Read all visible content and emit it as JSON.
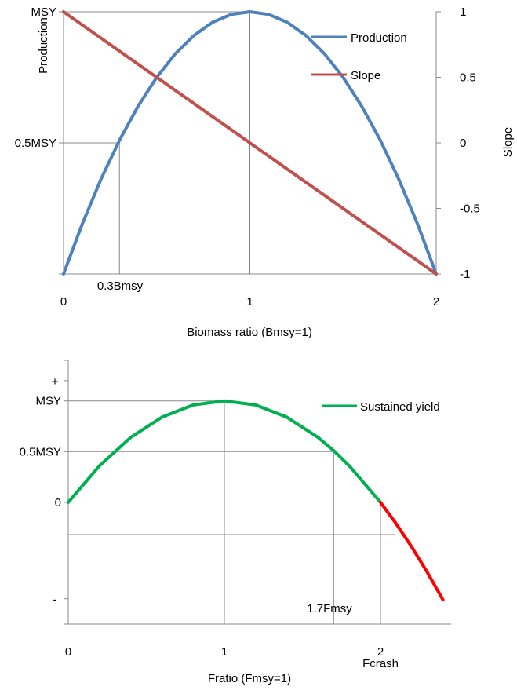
{
  "chart_data": [
    {
      "type": "line",
      "x": [
        0,
        0.1,
        0.2,
        0.3,
        0.4,
        0.5,
        0.6,
        0.7,
        0.8,
        0.9,
        1.0,
        1.1,
        1.2,
        1.3,
        1.4,
        1.5,
        1.6,
        1.7,
        1.8,
        1.9,
        2.0
      ],
      "series": [
        {
          "name": "Production",
          "axis": "left",
          "color": "#4f81bd",
          "values": [
            0,
            0.19,
            0.36,
            0.51,
            0.64,
            0.75,
            0.84,
            0.91,
            0.96,
            0.99,
            1.0,
            0.99,
            0.96,
            0.91,
            0.84,
            0.75,
            0.64,
            0.51,
            0.36,
            0.19,
            0
          ]
        },
        {
          "name": "Slope",
          "axis": "right",
          "color": "#c0504d",
          "values": [
            1.0,
            0.9,
            0.8,
            0.7,
            0.6,
            0.5,
            0.4,
            0.3,
            0.2,
            0.1,
            0,
            -0.1,
            -0.2,
            -0.3,
            -0.4,
            -0.5,
            -0.6,
            -0.7,
            -0.8,
            -0.9,
            -1.0
          ]
        }
      ],
      "xlabel": "Biomass ratio (Bmsy=1)",
      "ylabel": "Production",
      "y2label": "Slope",
      "xlim": [
        0,
        2
      ],
      "ylim": [
        0,
        1
      ],
      "y2lim": [
        -1,
        1
      ],
      "xticks": [
        {
          "value": 0,
          "label": "0"
        },
        {
          "value": 1,
          "label": "1"
        },
        {
          "value": 2,
          "label": "2"
        }
      ],
      "yticks": [
        {
          "value": 1,
          "label": "MSY"
        },
        {
          "value": 0.5,
          "label": "0.5MSY"
        }
      ],
      "y2ticks": [
        {
          "value": 1,
          "label": "1"
        },
        {
          "value": 0.5,
          "label": "0.5"
        },
        {
          "value": 0,
          "label": "0"
        },
        {
          "value": -0.5,
          "label": "-0.5"
        },
        {
          "value": -1,
          "label": "-1"
        }
      ],
      "annotations": [
        {
          "text": "0.3Bmsy",
          "x": 0.3
        }
      ],
      "reference_lines": [
        {
          "x": 0.3,
          "y": 0.5
        },
        {
          "x": 1.0,
          "y": 1.0
        }
      ],
      "legend": "top-right",
      "grid": false
    },
    {
      "type": "line",
      "x": [
        0,
        0.2,
        0.4,
        0.6,
        0.8,
        1.0,
        1.2,
        1.4,
        1.6,
        1.7,
        1.8,
        2.0,
        2.1,
        2.2,
        2.3,
        2.4
      ],
      "series": [
        {
          "name": "Sustained yield",
          "color": "#00b050",
          "values": [
            0,
            0.36,
            0.64,
            0.84,
            0.96,
            1.0,
            0.96,
            0.84,
            0.64,
            0.51,
            0.36,
            0,
            null,
            null,
            null,
            null
          ]
        },
        {
          "name": "",
          "color": "#ff0000",
          "values": [
            null,
            null,
            null,
            null,
            null,
            null,
            null,
            null,
            null,
            null,
            null,
            0,
            -0.21,
            -0.44,
            -0.69,
            -0.96
          ]
        }
      ],
      "xlabel": "Fratio (Fmsy=1)",
      "ylabel": "",
      "xlim": [
        0,
        2.4
      ],
      "ylim": [
        -1.2,
        1.4
      ],
      "xticks": [
        {
          "value": 0,
          "label": "0"
        },
        {
          "value": 1,
          "label": "1"
        },
        {
          "value": 2,
          "label": "2"
        }
      ],
      "yticks": [
        {
          "value": 1.2,
          "label": "+"
        },
        {
          "value": 1,
          "label": "MSY"
        },
        {
          "value": 0.5,
          "label": "0.5MSY"
        },
        {
          "value": 0,
          "label": "0"
        },
        {
          "value": -0.95,
          "label": "-"
        }
      ],
      "annotations": [
        {
          "text": "1.7Fmsy",
          "x": 1.7
        },
        {
          "text": "Fcrash",
          "x": 2.0
        }
      ],
      "reference_lines": [
        {
          "x": 1.0,
          "y": 1.0
        },
        {
          "x": 1.7,
          "y": 0.5
        },
        {
          "x": 2.0,
          "y": 0
        }
      ],
      "legend": "top-right",
      "grid": false
    }
  ]
}
